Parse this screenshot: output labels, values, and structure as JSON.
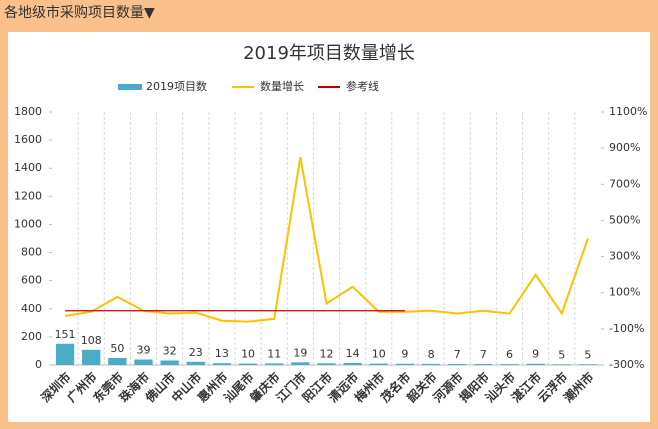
{
  "header": {
    "title": "各地级市采购项目数量▼"
  },
  "chart_data": {
    "type": "combo",
    "title": "2019年项目数量增长",
    "categories": [
      "深圳市",
      "广州市",
      "东莞市",
      "珠海市",
      "佛山市",
      "中山市",
      "惠州市",
      "汕尾市",
      "肇庆市",
      "江门市",
      "阳江市",
      "清远市",
      "梅州市",
      "茂名市",
      "韶关市",
      "河源市",
      "揭阳市",
      "汕头市",
      "湛江市",
      "云浮市",
      "潮州市"
    ],
    "series": [
      {
        "name": "2019项目数",
        "type": "bar",
        "color": "#4bacc6",
        "values": [
          151,
          108,
          50,
          39,
          32,
          23,
          13,
          10,
          11,
          19,
          12,
          14,
          10,
          9,
          8,
          7,
          7,
          6,
          9,
          5,
          5
        ]
      },
      {
        "name": "数量增长",
        "type": "line",
        "axis": "y2",
        "color": "#ffc000",
        "values": [
          -28,
          -5,
          77,
          0,
          -16,
          -10,
          -55,
          -60,
          -45,
          850,
          40,
          133,
          -5,
          -5,
          0,
          -15,
          0,
          -15,
          200,
          -15,
          400
        ]
      },
      {
        "name": "参考线",
        "type": "line",
        "axis": "y2",
        "color": "#c00000",
        "values": [
          0,
          0,
          0,
          0,
          0,
          0,
          0,
          0,
          0,
          0,
          0,
          0,
          0,
          0,
          null,
          null,
          null,
          null,
          null,
          null,
          null
        ]
      }
    ],
    "ylim": [
      0,
      1800
    ],
    "yticks": [
      0,
      200,
      400,
      600,
      800,
      1000,
      1200,
      1400,
      1600,
      1800
    ],
    "y2lim": [
      -300,
      1100
    ],
    "y2ticks": [
      {
        "value": -300,
        "label": "-300%"
      },
      {
        "value": -100,
        "label": "-100%"
      },
      {
        "value": 100,
        "label": "100%"
      },
      {
        "value": 300,
        "label": "300%"
      },
      {
        "value": 500,
        "label": "500%"
      },
      {
        "value": 700,
        "label": "700%"
      },
      {
        "value": 900,
        "label": "900%"
      },
      {
        "value": 1100,
        "label": "1100%"
      }
    ],
    "grid": true,
    "legend": "top"
  }
}
